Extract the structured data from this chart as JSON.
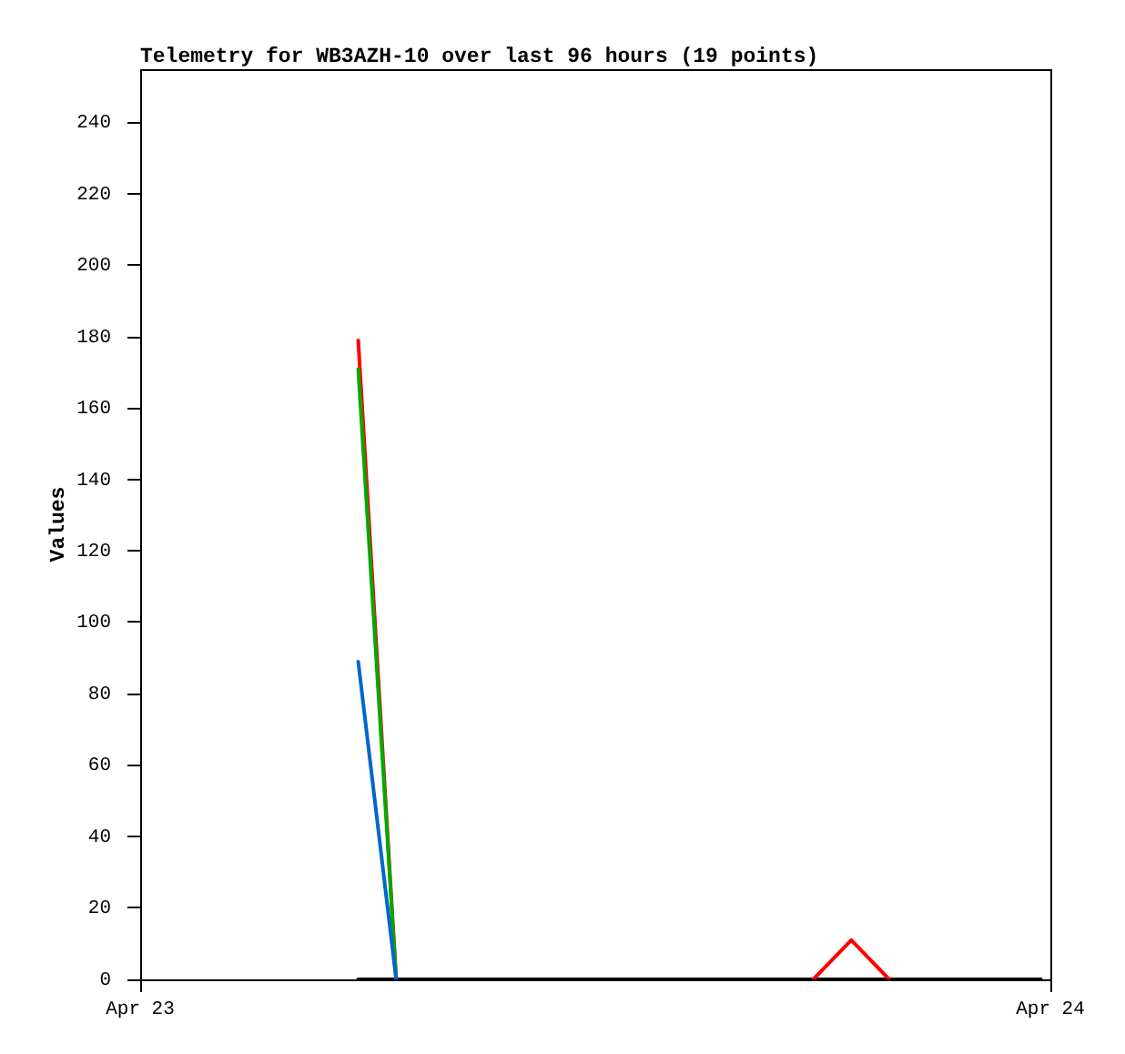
{
  "chart_data": {
    "type": "line",
    "title": "Telemetry for WB3AZH-10 over last 96 hours (19 points)",
    "ylabel": "Values",
    "x": [
      "--04-23T05:45",
      "--04-23T06:45",
      "--04-23T07:45",
      "--04-23T08:45",
      "--04-23T09:45",
      "--04-23T10:45",
      "--04-23T11:45",
      "--04-23T12:45",
      "--04-23T13:45",
      "--04-23T14:45",
      "--04-23T15:45",
      "--04-23T16:45",
      "--04-23T17:45",
      "--04-23T18:45",
      "--04-23T19:45",
      "--04-23T20:45",
      "--04-23T21:45",
      "--04-23T22:45",
      "--04-23T23:45"
    ],
    "series": [
      {
        "color": "#0066cc",
        "values": [
          89,
          0,
          null,
          null,
          null,
          null,
          null,
          null,
          null,
          null,
          null,
          null,
          null,
          null,
          null,
          null,
          null,
          null,
          null
        ]
      },
      {
        "color": "#00aa00",
        "values": [
          171,
          0,
          null,
          null,
          null,
          null,
          null,
          null,
          null,
          null,
          null,
          null,
          null,
          null,
          null,
          null,
          null,
          null,
          null
        ]
      },
      {
        "color": "#ff0000",
        "values": [
          179,
          0,
          null,
          null,
          null,
          null,
          null,
          null,
          null,
          null,
          null,
          null,
          0,
          11,
          0,
          null,
          null,
          null,
          null
        ]
      },
      {
        "color": "#000000",
        "values": [
          0,
          0,
          0,
          0,
          0,
          0,
          0,
          0,
          0,
          0,
          0,
          0,
          0,
          0,
          0,
          0,
          0,
          0,
          0
        ]
      }
    ],
    "xlim": [
      "--04-23",
      "--04-24"
    ],
    "xticks": [
      {
        "value": "--04-23",
        "label": "Apr 23"
      },
      {
        "value": "--04-24",
        "label": "Apr 24"
      }
    ],
    "ylim": [
      0,
      255
    ],
    "yticks": [
      0,
      20,
      40,
      60,
      80,
      100,
      120,
      140,
      160,
      180,
      200,
      220,
      240
    ],
    "marker": "none"
  }
}
